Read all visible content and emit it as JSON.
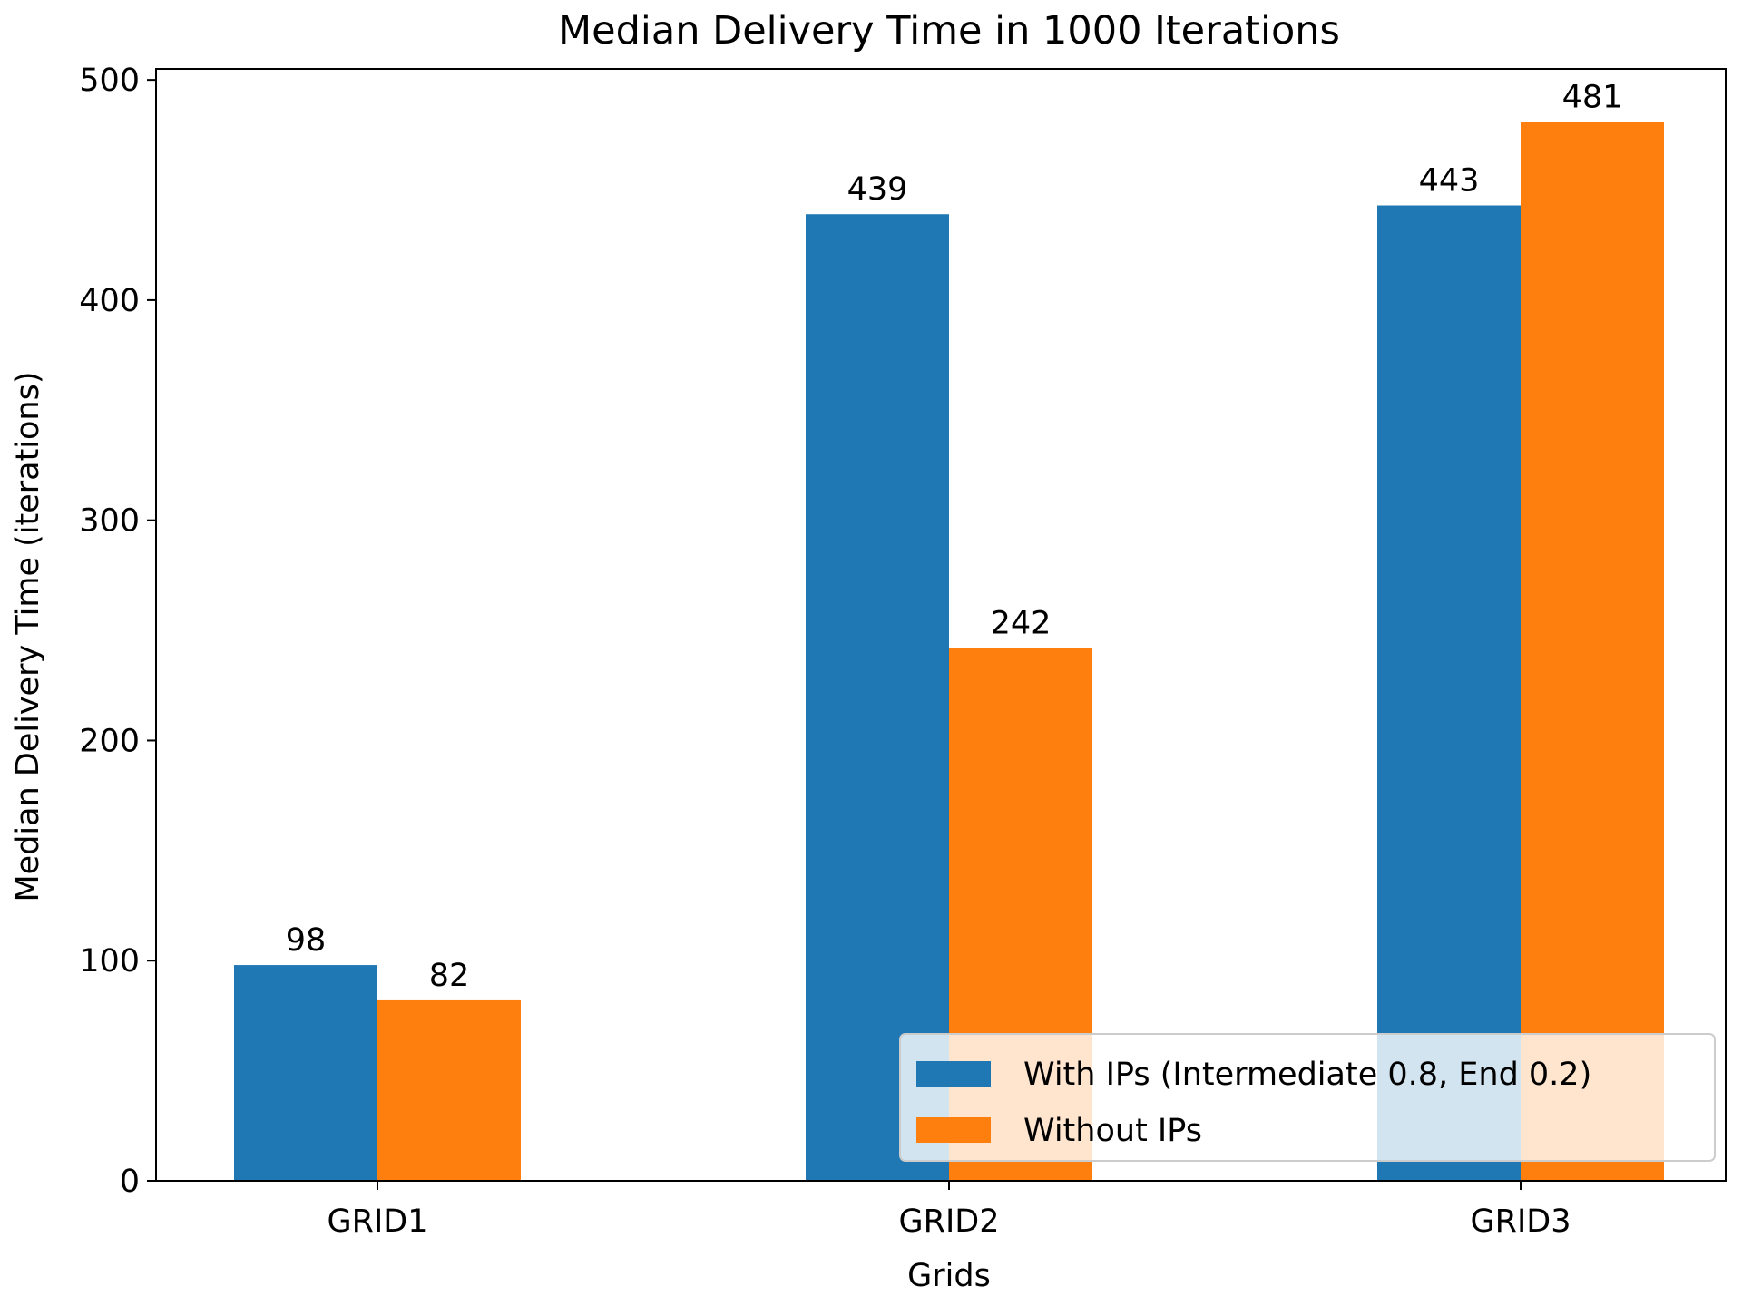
{
  "chart_data": {
    "type": "bar",
    "title": "Median Delivery Time in 1000 Iterations",
    "xlabel": "Grids",
    "ylabel": "Median Delivery Time (iterations)",
    "categories": [
      "GRID1",
      "GRID2",
      "GRID3"
    ],
    "series": [
      {
        "name": "With IPs (Intermediate 0.8, End 0.2)",
        "values": [
          98,
          439,
          443
        ],
        "color": "#1f77b4"
      },
      {
        "name": "Without IPs",
        "values": [
          82,
          242,
          481
        ],
        "color": "#ff7f0e"
      }
    ],
    "ylim": [
      0,
      505
    ],
    "yticks": [
      0,
      100,
      200,
      300,
      400,
      500
    ],
    "grid": false,
    "legend_position": "lower-right"
  }
}
